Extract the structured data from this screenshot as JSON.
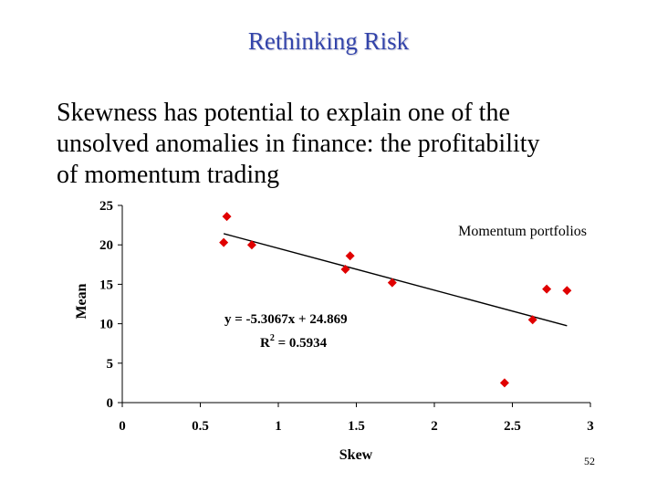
{
  "slide": {
    "title": "Rethinking Risk",
    "body_lines": [
      "Skewness has potential to explain one of the",
      "unsolved anomalies in finance: the profitability",
      "of momentum trading"
    ],
    "page_number": "52"
  },
  "chart_data": {
    "type": "scatter",
    "title": "",
    "xlabel": "Skew",
    "ylabel": "Mean",
    "xlim": [
      0,
      3
    ],
    "ylim": [
      0,
      25
    ],
    "x_ticks": [
      0,
      0.5,
      1,
      1.5,
      2,
      2.5,
      3
    ],
    "x_tick_labels": [
      "0",
      "0.5",
      "1",
      "1.5",
      "2",
      "2.5",
      "3"
    ],
    "y_ticks": [
      0,
      5,
      10,
      15,
      20,
      25
    ],
    "y_tick_labels": [
      "0",
      "5",
      "10",
      "15",
      "20",
      "25"
    ],
    "grid": false,
    "legend_position": "top-right",
    "series": [
      {
        "name": "Momentum portfolios",
        "color": "#e00000",
        "marker": "diamond",
        "x": [
          0.65,
          0.67,
          0.83,
          1.43,
          1.46,
          1.73,
          2.45,
          2.63,
          2.72,
          2.85
        ],
        "y": [
          20.3,
          23.6,
          20.0,
          16.9,
          18.6,
          15.2,
          2.5,
          10.5,
          14.4,
          14.2
        ]
      }
    ],
    "trendline": {
      "slope": -5.3067,
      "intercept": 24.869,
      "x_range": [
        0.65,
        2.85
      ],
      "color": "#000000"
    },
    "annotations": {
      "equation": "y = -5.3067x + 24.869",
      "r_squared_prefix": "R",
      "r_squared_exponent": "2",
      "r_squared_value": " = 0.5934"
    }
  }
}
